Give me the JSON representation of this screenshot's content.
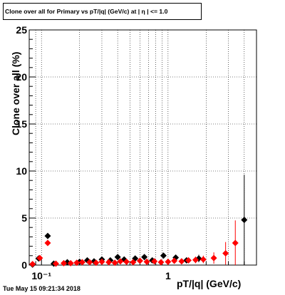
{
  "header": {
    "title": "Clone  over all for Primary vs pT/|q| (GeV/c) at |  η | <= 1.0"
  },
  "footer": {
    "timestamp": "Tue May 15 09:21:34 2018"
  },
  "colors": {
    "series_black": "#000000",
    "series_red": "#ff0000",
    "grid": "#000000",
    "background": "#ffffff"
  },
  "chart_data": {
    "type": "scatter",
    "title": "Clone  over all for Primary vs pT/|q| (GeV/c) at |  η | <= 1.0",
    "xlabel": "pT/|q| (GeV/c)",
    "ylabel": "Clone  over all (%)",
    "x_scale": "log",
    "xlim": [
      0.08,
      5.0
    ],
    "ylim": [
      0,
      25
    ],
    "x_tick_labels": [
      {
        "value": 0.1,
        "label": "10⁻¹"
      },
      {
        "value": 1,
        "label": "1"
      }
    ],
    "y_ticks": [
      0,
      5,
      10,
      15,
      20,
      25
    ],
    "grid": true,
    "legend": "none",
    "series": [
      {
        "color": "#000000",
        "marker": "diamond",
        "points": [
          {
            "x": 0.085,
            "y": 0.05,
            "err": 0.05
          },
          {
            "x": 0.095,
            "y": 0.7,
            "err": 0.15
          },
          {
            "x": 0.112,
            "y": 3.1,
            "err": 0.3
          },
          {
            "x": 0.125,
            "y": 0.15,
            "err": 0.1
          },
          {
            "x": 0.16,
            "y": 0.3,
            "err": 0.1
          },
          {
            "x": 0.2,
            "y": 0.35,
            "err": 0.1
          },
          {
            "x": 0.23,
            "y": 0.5,
            "err": 0.1
          },
          {
            "x": 0.26,
            "y": 0.4,
            "err": 0.1
          },
          {
            "x": 0.3,
            "y": 0.6,
            "err": 0.15
          },
          {
            "x": 0.35,
            "y": 0.5,
            "err": 0.1
          },
          {
            "x": 0.4,
            "y": 0.85,
            "err": 0.2
          },
          {
            "x": 0.45,
            "y": 0.6,
            "err": 0.15
          },
          {
            "x": 0.55,
            "y": 0.7,
            "err": 0.2
          },
          {
            "x": 0.65,
            "y": 0.85,
            "err": 0.2
          },
          {
            "x": 0.75,
            "y": 0.5,
            "err": 0.2
          },
          {
            "x": 0.92,
            "y": 1.0,
            "err": 0.25
          },
          {
            "x": 1.15,
            "y": 0.8,
            "err": 0.3
          },
          {
            "x": 1.4,
            "y": 0.5,
            "err": 0.3
          },
          {
            "x": 1.75,
            "y": 0.7,
            "err": 0.4
          },
          {
            "x": 4.0,
            "y": 4.8,
            "err": 4.8
          }
        ]
      },
      {
        "color": "#ff0000",
        "marker": "diamond",
        "points": [
          {
            "x": 0.085,
            "y": 0.1,
            "err": 0.1
          },
          {
            "x": 0.097,
            "y": 0.75,
            "err": 0.15
          },
          {
            "x": 0.112,
            "y": 2.35,
            "err": 0.3
          },
          {
            "x": 0.13,
            "y": 0.15,
            "err": 0.1
          },
          {
            "x": 0.15,
            "y": 0.2,
            "err": 0.1
          },
          {
            "x": 0.17,
            "y": 0.2,
            "err": 0.1
          },
          {
            "x": 0.19,
            "y": 0.25,
            "err": 0.1
          },
          {
            "x": 0.21,
            "y": 0.3,
            "err": 0.1
          },
          {
            "x": 0.24,
            "y": 0.3,
            "err": 0.1
          },
          {
            "x": 0.27,
            "y": 0.25,
            "err": 0.1
          },
          {
            "x": 0.3,
            "y": 0.35,
            "err": 0.1
          },
          {
            "x": 0.34,
            "y": 0.3,
            "err": 0.1
          },
          {
            "x": 0.38,
            "y": 0.25,
            "err": 0.1
          },
          {
            "x": 0.42,
            "y": 0.4,
            "err": 0.15
          },
          {
            "x": 0.47,
            "y": 0.35,
            "err": 0.15
          },
          {
            "x": 0.53,
            "y": 0.3,
            "err": 0.15
          },
          {
            "x": 0.6,
            "y": 0.45,
            "err": 0.15
          },
          {
            "x": 0.68,
            "y": 0.35,
            "err": 0.15
          },
          {
            "x": 0.78,
            "y": 0.4,
            "err": 0.2
          },
          {
            "x": 0.88,
            "y": 0.3,
            "err": 0.2
          },
          {
            "x": 1.0,
            "y": 0.35,
            "err": 0.25
          },
          {
            "x": 1.12,
            "y": 0.45,
            "err": 0.25
          },
          {
            "x": 1.28,
            "y": 0.4,
            "err": 0.3
          },
          {
            "x": 1.45,
            "y": 0.5,
            "err": 0.3
          },
          {
            "x": 1.65,
            "y": 0.55,
            "err": 0.35
          },
          {
            "x": 1.9,
            "y": 0.6,
            "err": 0.4
          },
          {
            "x": 2.3,
            "y": 0.75,
            "err": 0.6
          },
          {
            "x": 2.85,
            "y": 1.25,
            "err": 1.2
          },
          {
            "x": 3.4,
            "y": 2.35,
            "err": 2.4
          }
        ]
      }
    ]
  }
}
